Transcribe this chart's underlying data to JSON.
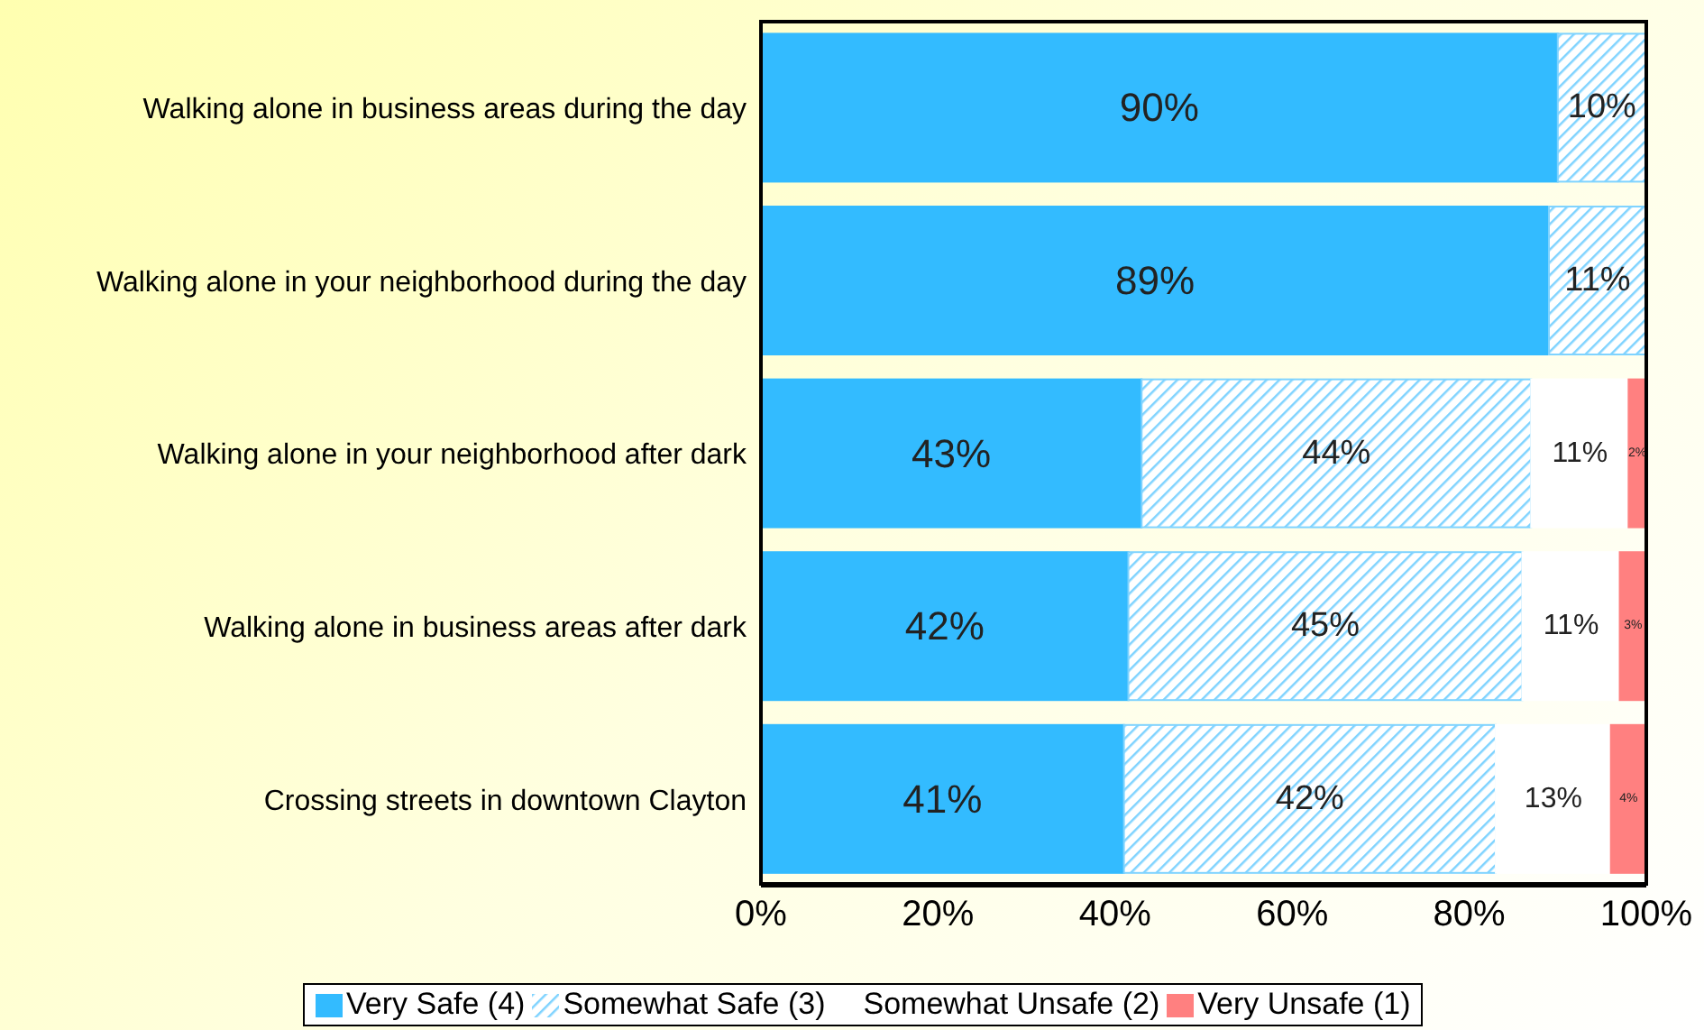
{
  "chart_data": {
    "type": "bar",
    "orientation": "horizontal",
    "stacked": true,
    "categories": [
      "Walking alone in business areas during the day",
      "Walking alone in your neighborhood during the day",
      "Walking alone in your neighborhood after dark",
      "Walking alone in business areas after dark",
      "Crossing streets in downtown Clayton"
    ],
    "series": [
      {
        "name": "Very Safe (4)",
        "color": "#33bbff",
        "values": [
          90,
          89,
          43,
          41.5,
          41
        ],
        "value_labels": [
          "90%",
          "89%",
          "43%",
          "42%",
          "41%"
        ]
      },
      {
        "name": "Somewhat Safe (3)",
        "color": "#7fd3ff",
        "values": [
          10,
          11,
          44,
          44.5,
          42
        ],
        "value_labels": [
          "10%",
          "11%",
          "44%",
          "45%",
          "42%"
        ]
      },
      {
        "name": "Somewhat Unsafe (2)",
        "color": "#ffffff",
        "values": [
          0,
          0,
          11,
          11,
          13
        ],
        "value_labels": [
          null,
          null,
          "11%",
          "11%",
          "13%"
        ]
      },
      {
        "name": "Very Unsafe (1)",
        "color": "#ff8080",
        "values": [
          0,
          0,
          2,
          3,
          4
        ],
        "value_labels": [
          null,
          null,
          "2%",
          "3%",
          "4%"
        ]
      }
    ],
    "xlim": [
      0,
      100
    ],
    "xticks": [
      {
        "value": 0,
        "label": "0%"
      },
      {
        "value": 20,
        "label": "20%"
      },
      {
        "value": 40,
        "label": "40%"
      },
      {
        "value": 60,
        "label": "60%"
      },
      {
        "value": 80,
        "label": "80%"
      },
      {
        "value": 100,
        "label": "100%"
      }
    ],
    "grid": false,
    "legend": "bottom"
  }
}
